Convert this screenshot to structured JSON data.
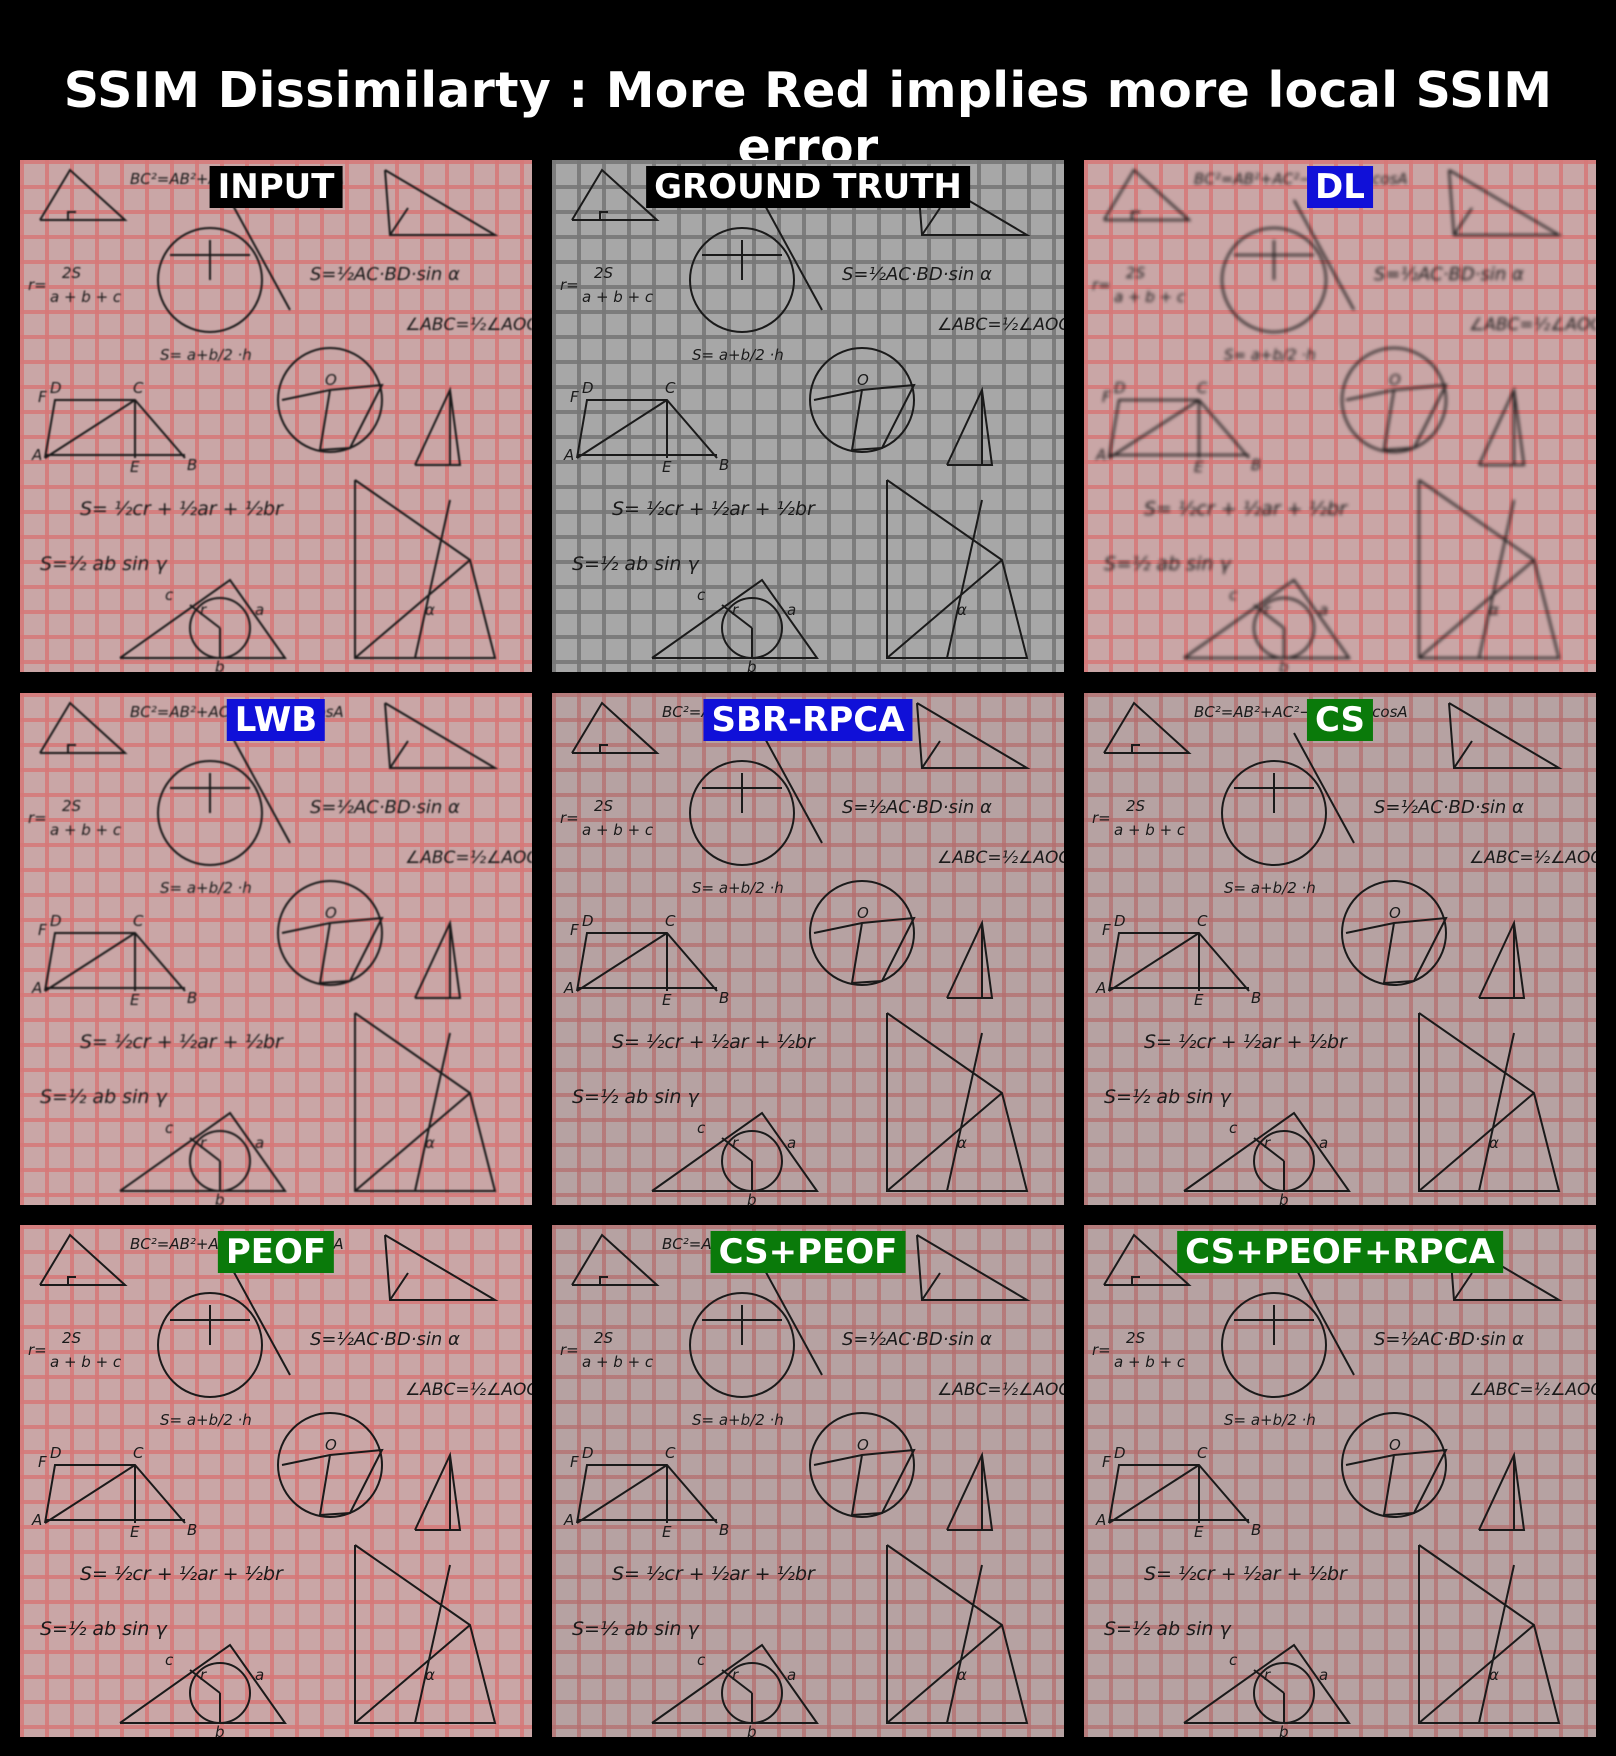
{
  "title": "SSIM Dissimilarty : More Red implies more local SSIM error",
  "panels": [
    {
      "label": "INPUT",
      "label_color": "#000000",
      "tint": "red"
    },
    {
      "label": "GROUND TRUTH",
      "label_color": "#000000",
      "tint": "none"
    },
    {
      "label": "DL",
      "label_color": "#1010d8",
      "tint": "red"
    },
    {
      "label": "LWB",
      "label_color": "#1010d8",
      "tint": "red"
    },
    {
      "label": "SBR-RPCA",
      "label_color": "#1010d8",
      "tint": "pink"
    },
    {
      "label": "CS",
      "label_color": "#0a7a0a",
      "tint": "pink"
    },
    {
      "label": "PEOF",
      "label_color": "#0a7a0a",
      "tint": "red"
    },
    {
      "label": "CS+PEOF",
      "label_color": "#0a7a0a",
      "tint": "pink"
    },
    {
      "label": "CS+PEOF+RPCA",
      "label_color": "#0a7a0a",
      "tint": "pink"
    }
  ],
  "sketch_text": {
    "formula_area": "S=½AC·BD·sin α",
    "formula_angle": "∠ABC=½∠AOC",
    "formula_inradius_num": "2S",
    "formula_inradius_den": "a + b + c",
    "formula_r": "r=",
    "formula_trap": "S= a+b/2 ·h",
    "formula_sum": "S= ½cr + ½ar + ½br",
    "formula_absin": "S=½ ab sin γ",
    "formula_cos": "BC²=AB²+AC²−2AB·AC·cosA",
    "pt_A": "A",
    "pt_B": "B",
    "pt_C": "C",
    "pt_D": "D",
    "pt_E": "E",
    "pt_F": "F",
    "pt_O": "O",
    "pt_a": "a",
    "pt_b": "b",
    "pt_c": "c",
    "pt_r": "r",
    "pt_alpha": "α"
  },
  "colors": {
    "background": "#000000",
    "title": "#ffffff",
    "grid": "#787878",
    "red_grid": "#d67878"
  }
}
